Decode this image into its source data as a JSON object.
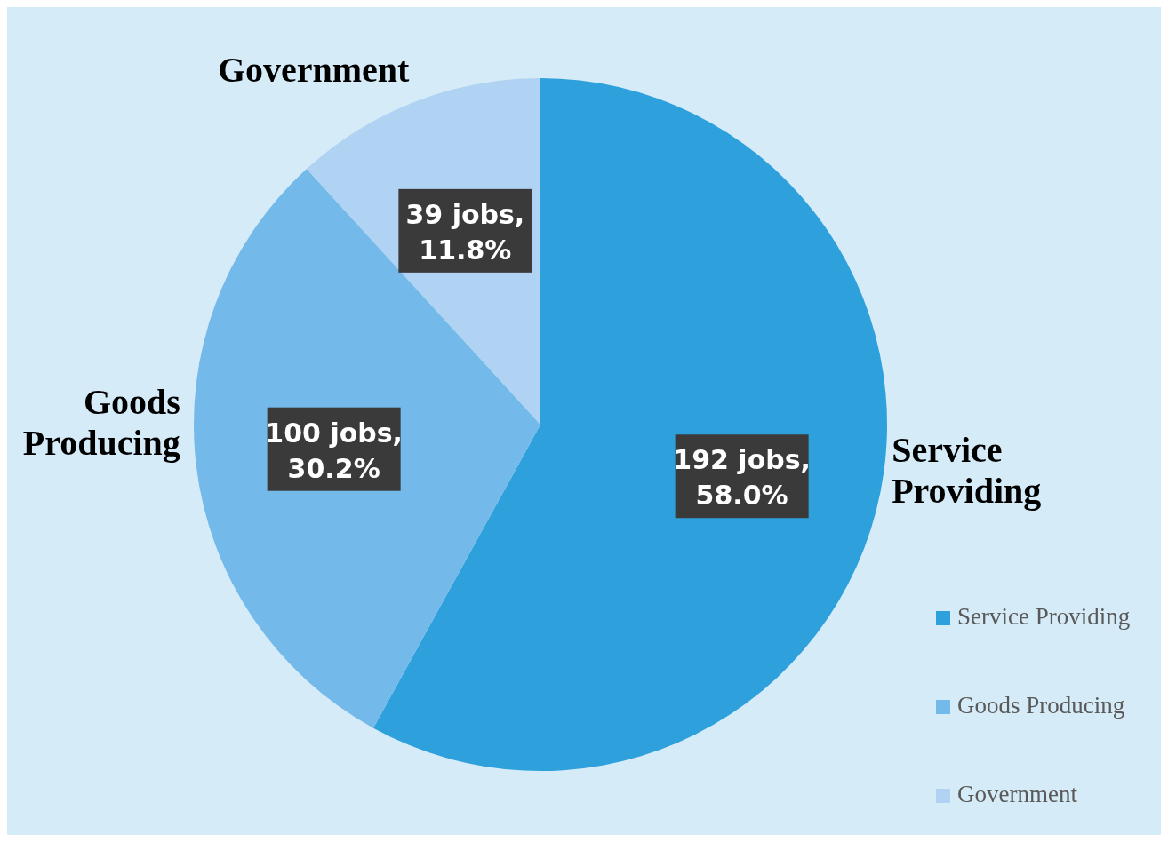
{
  "chart_data": {
    "type": "pie",
    "categories": [
      "Service Providing",
      "Goods Producing",
      "Government"
    ],
    "values": [
      192,
      100,
      39
    ],
    "colors": [
      "#2ea1dd",
      "#73b9ea",
      "#b0d3f3"
    ],
    "value_labels": [
      "192 jobs, 58.0%",
      "100 jobs, 30.2%",
      "39 jobs, 11.8%"
    ],
    "legend": "right"
  }
}
